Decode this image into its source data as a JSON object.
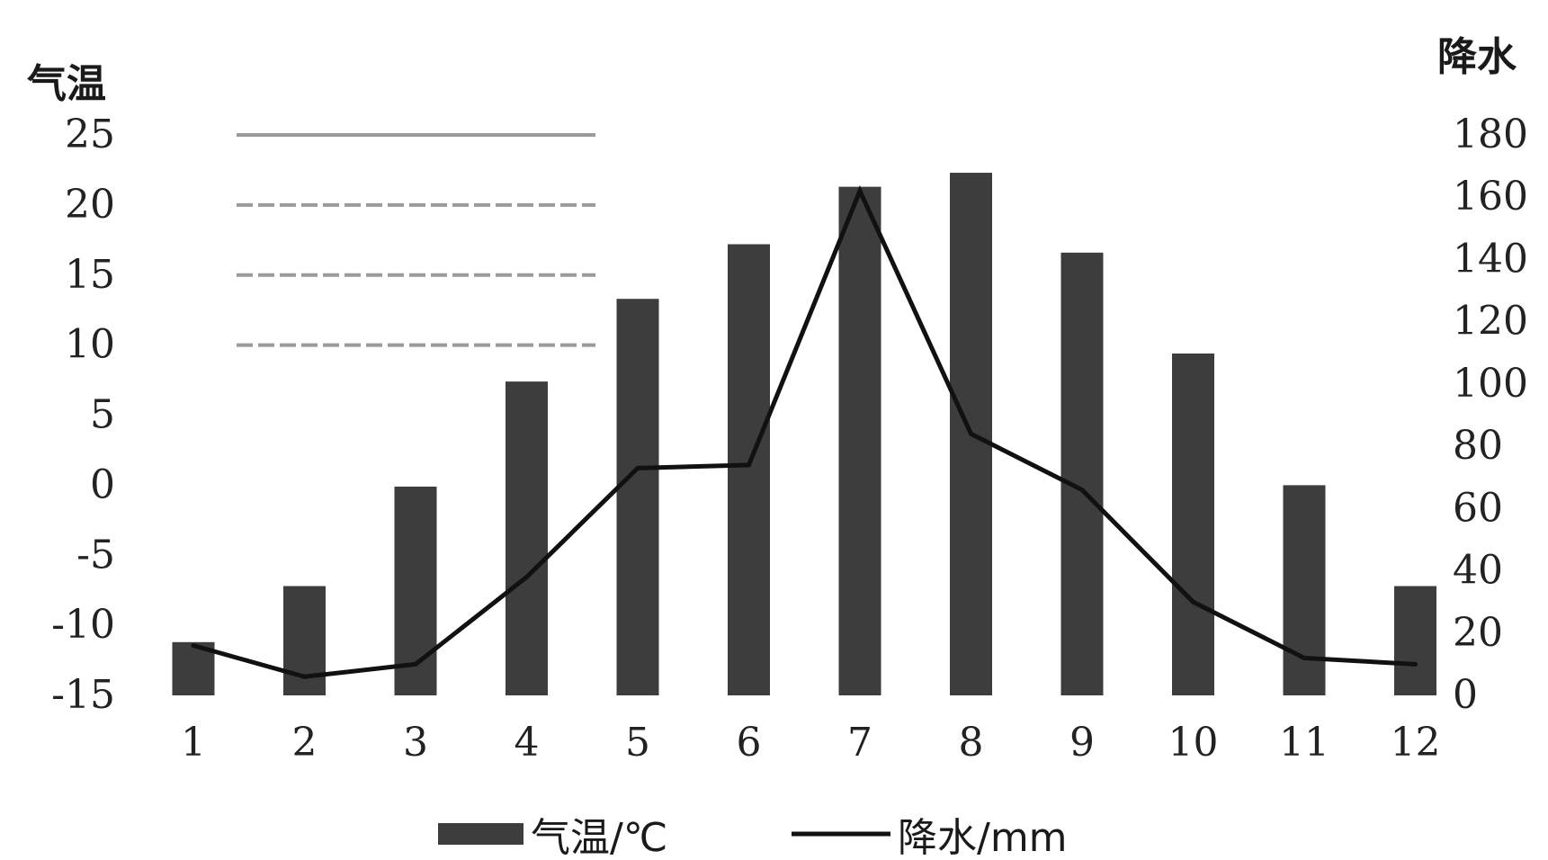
{
  "chart_data": {
    "type": "bar",
    "categories": [
      "1",
      "2",
      "3",
      "4",
      "5",
      "6",
      "7",
      "8",
      "9",
      "10",
      "11",
      "12"
    ],
    "series": [
      {
        "name": "气温/℃",
        "type": "bar",
        "axis": "left",
        "values": [
          -11.2,
          -7.2,
          -0.1,
          7.4,
          13.3,
          17.2,
          21.3,
          22.3,
          16.6,
          9.4,
          0,
          -7.2
        ],
        "color": "#3d3d3d"
      },
      {
        "name": "降水/mm",
        "type": "line",
        "axis": "right",
        "values": [
          16,
          6,
          10,
          38,
          73,
          74,
          162,
          84,
          66,
          30,
          12,
          10
        ],
        "color": "#111111"
      }
    ],
    "ylabel_left": "气温",
    "ylabel_right": "降水",
    "ylim_left": [
      -15,
      25
    ],
    "ylim_right": [
      0,
      180
    ],
    "yticks_left": [
      "25",
      "20",
      "15",
      "10",
      "5",
      "0",
      "-5",
      "-10",
      "-15"
    ],
    "yticks_right": [
      "180",
      "160",
      "140",
      "120",
      "100",
      "80",
      "60",
      "40",
      "20",
      "0"
    ],
    "gridlines_partial": [
      25,
      20,
      15,
      10
    ],
    "grid": false,
    "legend_position": "bottom-center"
  }
}
